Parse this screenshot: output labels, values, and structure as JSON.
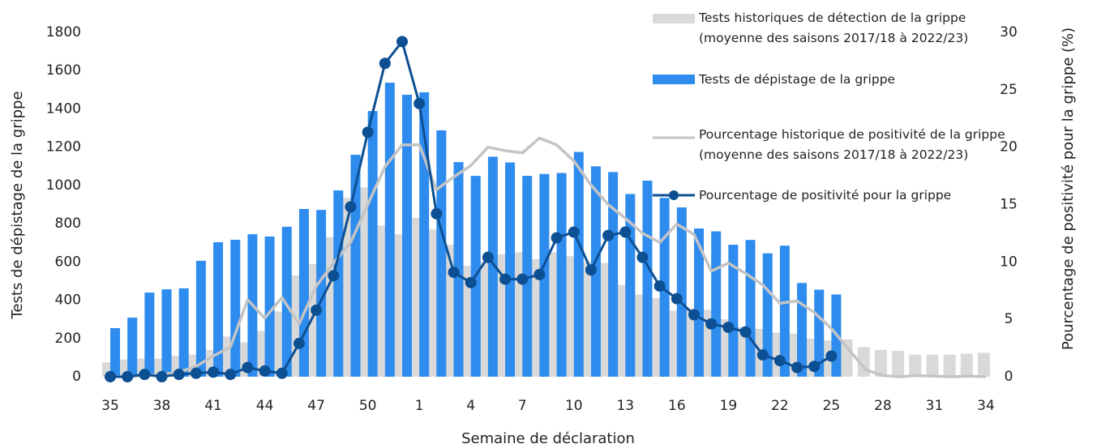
{
  "chart_data": {
    "type": "combo",
    "xlabel": "Semaine de déclaration",
    "ylabel": "Tests de dépistage de la grippe",
    "y2label": "Pourcentage de positivité pour la grippe (%)",
    "categories": [
      "35",
      null,
      null,
      "38",
      null,
      null,
      "41",
      null,
      null,
      "44",
      null,
      null,
      "47",
      null,
      null,
      "50",
      null,
      null,
      "1",
      null,
      null,
      "4",
      null,
      null,
      "7",
      null,
      null,
      "10",
      null,
      null,
      "13",
      null,
      null,
      "16",
      null,
      null,
      "19",
      null,
      null,
      "22",
      null,
      null,
      "25",
      null,
      null,
      "28",
      null,
      null,
      "31",
      null,
      null,
      "34"
    ],
    "ylim": [
      0,
      1800
    ],
    "yticks": [
      0,
      200,
      400,
      600,
      800,
      1000,
      1200,
      1400,
      1600,
      1800
    ],
    "y2lim": [
      0,
      30
    ],
    "y2ticks": [
      0,
      5,
      10,
      15,
      20,
      25,
      30
    ],
    "legend": "top-right",
    "series": [
      {
        "name": "Tests historiques de détection de la grippe (moyenne des saisons 2017/18 à 2022/23)",
        "type": "bar",
        "color": "#d9d9d9",
        "values": [
          75,
          90,
          95,
          95,
          110,
          115,
          140,
          210,
          180,
          240,
          340,
          530,
          590,
          730,
          935,
          990,
          790,
          745,
          830,
          770,
          690,
          580,
          600,
          640,
          650,
          615,
          650,
          630,
          600,
          595,
          480,
          430,
          410,
          345,
          355,
          350,
          300,
          260,
          250,
          230,
          225,
          200,
          190,
          195,
          155,
          140,
          135,
          115,
          115,
          115,
          120,
          125
        ]
      },
      {
        "name": "Tests de dépistage de la grippe",
        "type": "bar",
        "color": "#2e8cee",
        "values": [
          254,
          309,
          440,
          457,
          462,
          606,
          703,
          716,
          745,
          733,
          784,
          877,
          872,
          974,
          1160,
          1389,
          1537,
          1474,
          1487,
          1288,
          1122,
          1050,
          1150,
          1120,
          1050,
          1060,
          1065,
          1175,
          1100,
          1070,
          955,
          1025,
          935,
          885,
          775,
          760,
          690,
          715,
          645,
          685,
          490,
          455,
          430,
          null,
          null,
          null,
          null,
          null,
          null,
          null,
          null,
          null
        ]
      },
      {
        "name": "Pourcentage historique de positivité de la grippe (moyenne des saisons 2017/18 à 2022/23)",
        "type": "line",
        "axis": "y2",
        "color": "#c4c4c4",
        "values": [
          0,
          0,
          0.1,
          0.2,
          0.4,
          0.9,
          1.8,
          2.6,
          6.7,
          5.1,
          6.9,
          4.6,
          7.9,
          9.9,
          11.7,
          15.0,
          18.3,
          20.2,
          20.2,
          16.3,
          17.4,
          18.4,
          20.0,
          19.7,
          19.5,
          20.8,
          20.2,
          18.8,
          16.7,
          15.0,
          13.8,
          12.5,
          11.7,
          13.3,
          12.4,
          9.2,
          9.9,
          9.0,
          8.0,
          6.4,
          6.6,
          5.6,
          4.2,
          2.4,
          0.6,
          0.1,
          0,
          0.1,
          0.05,
          0,
          0.05,
          0
        ]
      },
      {
        "name": "Pourcentage de positivité pour la grippe",
        "type": "line",
        "axis": "y2",
        "markers": true,
        "color": "#0d4f93",
        "values": [
          0,
          0,
          0.2,
          0,
          0.2,
          0.3,
          0.4,
          0.2,
          0.8,
          0.5,
          0.3,
          2.9,
          5.8,
          8.8,
          14.8,
          21.3,
          27.3,
          29.2,
          23.8,
          14.2,
          9.1,
          8.2,
          10.4,
          8.5,
          8.5,
          8.9,
          12.1,
          12.6,
          9.3,
          12.3,
          12.6,
          10.4,
          7.9,
          6.8,
          5.4,
          4.6,
          4.3,
          3.9,
          1.9,
          1.4,
          0.8,
          0.9,
          1.8,
          null,
          null,
          null,
          null,
          null,
          null,
          null,
          null,
          null
        ]
      }
    ]
  }
}
